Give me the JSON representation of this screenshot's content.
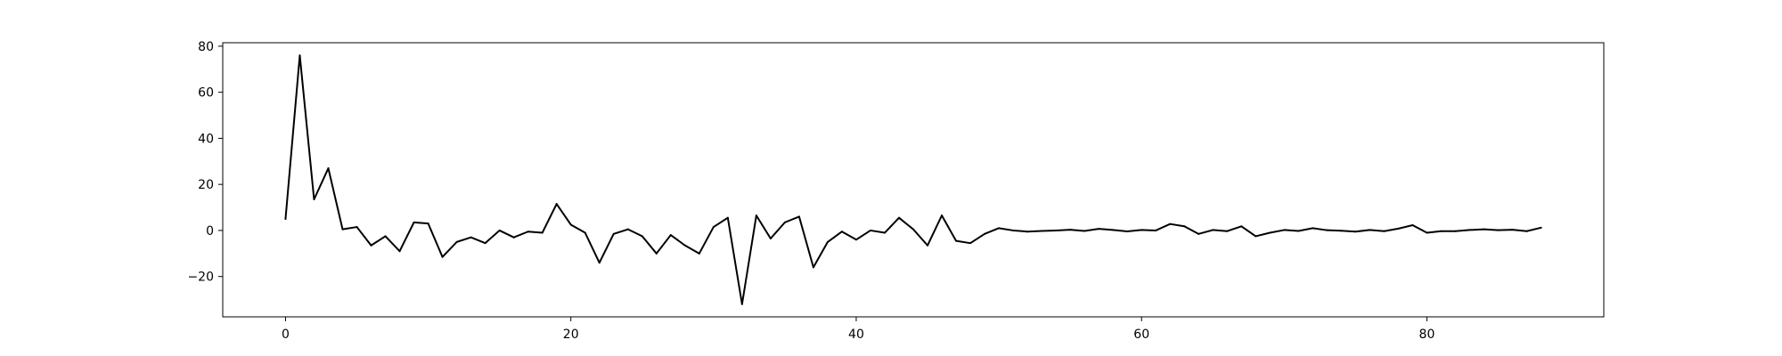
{
  "chart_data": {
    "type": "line",
    "title": "",
    "xlabel": "",
    "ylabel": "",
    "xlim": [
      -4.4,
      92.4
    ],
    "ylim": [
      -37.5,
      81.5
    ],
    "grid": false,
    "x_ticks": [
      {
        "value": 0,
        "label": "0"
      },
      {
        "value": 20,
        "label": "20"
      },
      {
        "value": 40,
        "label": "40"
      },
      {
        "value": 60,
        "label": "60"
      },
      {
        "value": 80,
        "label": "80"
      }
    ],
    "y_ticks": [
      {
        "value": -20,
        "label": "−20"
      },
      {
        "value": 0,
        "label": "0"
      },
      {
        "value": 20,
        "label": "20"
      },
      {
        "value": 40,
        "label": "40"
      },
      {
        "value": 60,
        "label": "60"
      },
      {
        "value": 80,
        "label": "80"
      }
    ],
    "series": [
      {
        "color": "#000000",
        "x_start": 0,
        "values": [
          5,
          76,
          13.5,
          27,
          0.5,
          1.5,
          -6.5,
          -2.5,
          -9,
          3.5,
          3,
          -11.5,
          -5,
          -3,
          -5.5,
          0,
          -3,
          -0.5,
          -1,
          11.5,
          2.5,
          -1,
          -14,
          -1.5,
          0.5,
          -2.5,
          -10,
          -2,
          -6.5,
          -10,
          1.5,
          5.5,
          -32,
          6.5,
          -3.5,
          3.5,
          6,
          -16,
          -5,
          -0.5,
          -4,
          0,
          -1,
          5.5,
          0.5,
          -6.5,
          6.5,
          -4.5,
          -5.5,
          -1.5,
          1,
          0,
          -0.5,
          -0.2,
          0,
          0.3,
          -0.2,
          0.7,
          0.2,
          -0.4,
          0.2,
          0,
          2.8,
          1.8,
          -1.5,
          0.2,
          -0.3,
          1.8,
          -2.5,
          -1,
          0.2,
          -0.2,
          1,
          0.1,
          -0.1,
          -0.5,
          0.2,
          -0.3,
          0.8,
          2.3,
          -1,
          -0.3,
          -0.3,
          0.2,
          0.5,
          0.1,
          0.3,
          -0.3,
          1.2
        ]
      }
    ]
  }
}
